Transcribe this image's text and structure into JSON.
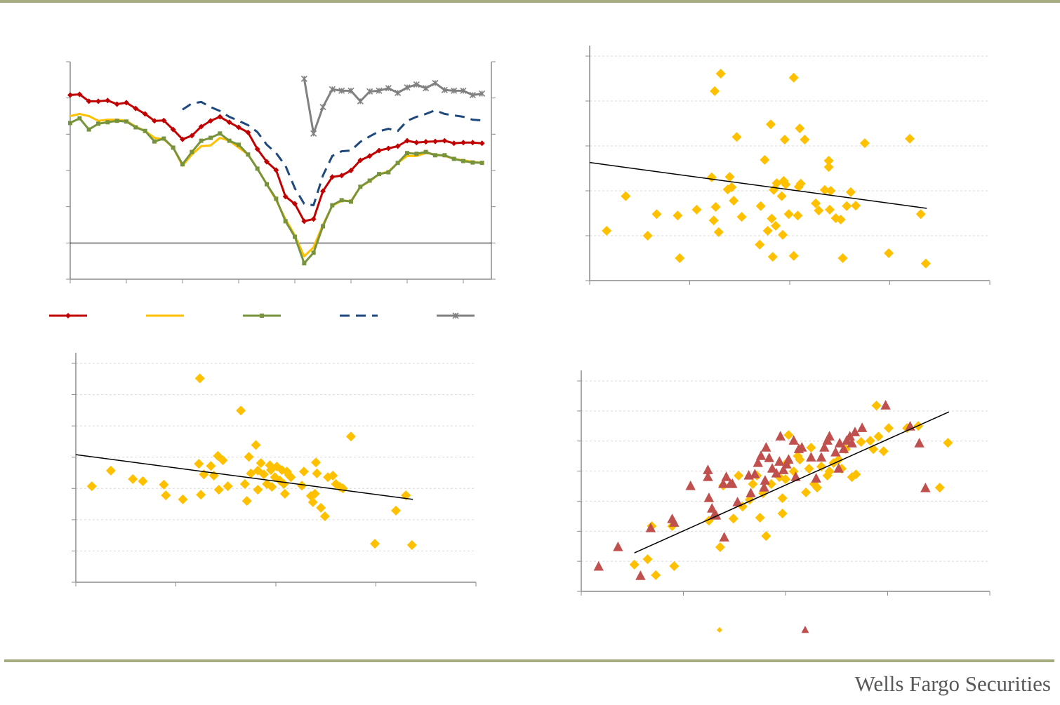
{
  "footer": "Wells Fargo Securities",
  "chart_data": [
    {
      "type": "line",
      "x": [
        0,
        1,
        2,
        3,
        4,
        5,
        6,
        7,
        8,
        9,
        10,
        11,
        12,
        13,
        14,
        15,
        16,
        17,
        18,
        19,
        20,
        21,
        22,
        23,
        24,
        25,
        26,
        27,
        28,
        29,
        30,
        31,
        32,
        33,
        34,
        35,
        36,
        37,
        38,
        39,
        40,
        41,
        42,
        43,
        44
      ],
      "xlim": [
        0,
        45
      ],
      "xticks": [
        0,
        6,
        12,
        18,
        24,
        30,
        36,
        42
      ],
      "ylim": [
        -1,
        5
      ],
      "yticks": [
        -1,
        0,
        1,
        2,
        3,
        4,
        5
      ],
      "mirror_axis": true,
      "series": [
        {
          "color": "#c00000",
          "marker": "diamond",
          "dash": false,
          "values": [
            4.08,
            4.1,
            3.91,
            3.91,
            3.93,
            3.83,
            3.87,
            3.71,
            3.56,
            3.37,
            3.38,
            3.13,
            2.86,
            2.96,
            3.21,
            3.37,
            3.48,
            3.33,
            3.19,
            3.05,
            2.59,
            2.24,
            2.01,
            1.28,
            1.08,
            0.6,
            0.66,
            1.43,
            1.82,
            1.86,
            2.0,
            2.28,
            2.4,
            2.55,
            2.61,
            2.67,
            2.82,
            2.77,
            2.79,
            2.8,
            2.82,
            2.75,
            2.77,
            2.77,
            2.75
          ]
        },
        {
          "color": "#ffc000",
          "marker": "none",
          "dash": false,
          "values": [
            3.5,
            3.56,
            3.5,
            3.37,
            3.4,
            3.4,
            3.37,
            3.21,
            3.09,
            2.9,
            2.86,
            2.63,
            2.13,
            2.44,
            2.67,
            2.69,
            2.9,
            2.82,
            2.63,
            2.44,
            2.05,
            1.62,
            1.18,
            0.66,
            0.21,
            -0.37,
            -0.12,
            0.5,
            1.03,
            1.16,
            1.16,
            1.55,
            1.7,
            1.9,
            1.97,
            2.21,
            2.4,
            2.4,
            2.48,
            2.44,
            2.4,
            2.32,
            2.28,
            2.24,
            2.21
          ]
        },
        {
          "color": "#77933c",
          "marker": "square",
          "dash": false,
          "values": [
            3.31,
            3.44,
            3.13,
            3.29,
            3.33,
            3.37,
            3.35,
            3.19,
            3.09,
            2.8,
            2.88,
            2.63,
            2.17,
            2.51,
            2.82,
            2.9,
            3.02,
            2.82,
            2.71,
            2.44,
            2.05,
            1.62,
            1.22,
            0.6,
            0.17,
            -0.56,
            -0.27,
            0.46,
            1.04,
            1.18,
            1.14,
            1.55,
            1.72,
            1.9,
            1.95,
            2.21,
            2.48,
            2.46,
            2.51,
            2.42,
            2.42,
            2.32,
            2.26,
            2.22,
            2.21
          ]
        },
        {
          "color": "#1f497d",
          "marker": "none",
          "dash": true,
          "values": [
            null,
            null,
            null,
            null,
            null,
            null,
            null,
            null,
            null,
            null,
            null,
            null,
            3.68,
            3.85,
            3.89,
            3.75,
            3.64,
            3.48,
            3.37,
            3.25,
            3.06,
            2.71,
            2.48,
            2.13,
            1.51,
            1.08,
            1.04,
            1.86,
            2.4,
            2.53,
            2.55,
            2.79,
            2.94,
            3.08,
            3.15,
            3.09,
            3.37,
            3.48,
            3.56,
            3.66,
            3.56,
            3.52,
            3.48,
            3.4,
            3.38
          ]
        },
        {
          "color": "#808080",
          "marker": "x",
          "dash": false,
          "values": [
            null,
            null,
            null,
            null,
            null,
            null,
            null,
            null,
            null,
            null,
            null,
            null,
            null,
            null,
            null,
            null,
            null,
            null,
            null,
            null,
            null,
            null,
            null,
            null,
            null,
            4.53,
            3.02,
            3.75,
            4.24,
            4.2,
            4.2,
            3.91,
            4.18,
            4.2,
            4.27,
            4.14,
            4.29,
            4.37,
            4.27,
            4.41,
            4.22,
            4.2,
            4.2,
            4.08,
            4.12
          ]
        }
      ]
    },
    {
      "type": "scatter",
      "xlim": [
        0,
        4
      ],
      "xticks": [
        0,
        1,
        2,
        3,
        4
      ],
      "ylim": [
        0,
        5
      ],
      "yticks": [
        0,
        1,
        2,
        3,
        4,
        5
      ],
      "grid": true,
      "series": [
        {
          "color": "#ffc000",
          "marker": "diamond",
          "x": [
            0.17,
            0.36,
            0.58,
            0.67,
            0.88,
            0.9,
            1.07,
            1.22,
            1.24,
            1.25,
            1.26,
            1.29,
            1.31,
            1.38,
            1.4,
            1.42,
            1.44,
            1.47,
            1.52,
            1.7,
            1.71,
            1.75,
            1.78,
            1.81,
            1.82,
            1.83,
            1.84,
            1.86,
            1.87,
            1.92,
            1.93,
            1.94,
            1.95,
            1.96,
            1.99,
            2.04,
            2.04,
            2.08,
            2.09,
            2.1,
            2.11,
            2.15,
            2.26,
            2.29,
            2.35,
            2.39,
            2.39,
            2.4,
            2.41,
            2.46,
            2.51,
            2.53,
            2.57,
            2.61,
            2.66,
            2.75,
            2.99,
            3.2,
            3.31,
            3.36
          ],
          "values": [
            1.11,
            1.88,
            1.0,
            1.48,
            1.45,
            0.5,
            1.58,
            2.3,
            1.34,
            4.22,
            1.64,
            1.08,
            4.61,
            2.03,
            2.31,
            2.08,
            1.78,
            3.2,
            1.42,
            0.8,
            1.66,
            2.69,
            1.11,
            3.48,
            1.38,
            0.53,
            2.02,
            1.22,
            2.17,
            1.88,
            1.02,
            2.22,
            3.14,
            2.14,
            1.48,
            4.52,
            0.55,
            1.45,
            2.09,
            3.39,
            2.16,
            3.14,
            1.72,
            1.56,
            2.02,
            2.53,
            2.67,
            1.58,
            2.0,
            1.39,
            1.36,
            0.5,
            1.66,
            1.97,
            1.67,
            3.06,
            0.61,
            3.16,
            1.48,
            0.38
          ]
        }
      ],
      "trendline": {
        "color": "#000000",
        "x": [
          0,
          3.37
        ],
        "values": [
          2.63,
          1.61
        ]
      }
    },
    {
      "type": "scatter",
      "xlim": [
        0,
        4
      ],
      "xticks": [
        0,
        1,
        2,
        3,
        4
      ],
      "ylim": [
        0,
        7
      ],
      "yticks": [
        0,
        1,
        2,
        3,
        4,
        5,
        6,
        7
      ],
      "grid": true,
      "series": [
        {
          "color": "#ffc000",
          "marker": "diamond",
          "x": [
            0.16,
            0.35,
            0.57,
            0.67,
            0.88,
            0.9,
            1.07,
            1.23,
            1.24,
            1.25,
            1.28,
            1.35,
            1.38,
            1.42,
            1.43,
            1.47,
            1.52,
            1.65,
            1.69,
            1.71,
            1.73,
            1.75,
            1.8,
            1.82,
            1.82,
            1.85,
            1.88,
            1.91,
            1.94,
            1.95,
            1.96,
            1.99,
            2.01,
            2.04,
            2.06,
            2.08,
            2.09,
            2.11,
            2.13,
            2.15,
            2.26,
            2.28,
            2.35,
            2.37,
            2.39,
            2.4,
            2.41,
            2.45,
            2.49,
            2.52,
            2.57,
            2.6,
            2.64,
            2.67,
            2.75,
            2.99,
            3.2,
            3.3,
            3.36
          ],
          "values": [
            3.07,
            3.57,
            3.3,
            3.23,
            3.12,
            2.78,
            2.65,
            3.79,
            6.52,
            2.8,
            3.45,
            3.72,
            3.41,
            4.04,
            2.96,
            3.9,
            3.07,
            5.49,
            3.14,
            2.6,
            4.01,
            3.48,
            4.39,
            2.96,
            3.57,
            3.81,
            3.45,
            3.14,
            3.74,
            3.59,
            3.05,
            3.36,
            3.7,
            3.25,
            3.59,
            3.14,
            2.83,
            3.54,
            3.43,
            3.36,
            3.09,
            3.54,
            2.76,
            2.56,
            2.83,
            3.83,
            3.48,
            2.38,
            2.11,
            3.36,
            3.41,
            3.14,
            3.05,
            3.0,
            4.66,
            1.23,
            2.29,
            2.78,
            1.19
          ]
        }
      ],
      "trendline": {
        "color": "#000000",
        "x": [
          0,
          3.37
        ],
        "values": [
          4.08,
          2.65
        ]
      }
    },
    {
      "type": "scatter",
      "xlim": [
        0,
        4
      ],
      "xticks": [
        0,
        1,
        2,
        3,
        4
      ],
      "ylim": [
        0,
        7
      ],
      "yticks": [
        0,
        1,
        2,
        3,
        4,
        5,
        6,
        7
      ],
      "grid": true,
      "legend": "bottom",
      "series": [
        {
          "color": "#ffc000",
          "marker": "diamond",
          "x": [
            0.52,
            0.65,
            0.69,
            0.73,
            0.89,
            0.91,
            1.25,
            1.36,
            1.39,
            1.49,
            1.54,
            1.58,
            1.65,
            1.68,
            1.72,
            1.75,
            1.78,
            1.81,
            1.86,
            1.94,
            1.97,
            1.97,
            2.0,
            2.01,
            2.03,
            2.08,
            2.12,
            2.14,
            2.2,
            2.23,
            2.25,
            2.28,
            2.31,
            2.35,
            2.41,
            2.43,
            2.47,
            2.52,
            2.55,
            2.59,
            2.65,
            2.69,
            2.74,
            2.83,
            2.86,
            2.89,
            2.91,
            2.96,
            3.01,
            3.19,
            3.3,
            3.51,
            3.59
          ],
          "values": [
            0.89,
            1.07,
            2.17,
            0.54,
            2.17,
            0.84,
            2.35,
            1.47,
            3.52,
            2.42,
            3.85,
            2.82,
            3.05,
            3.57,
            3.85,
            2.45,
            3.26,
            1.84,
            3.57,
            3.8,
            3.1,
            2.59,
            3.73,
            4.27,
            5.2,
            3.99,
            4.5,
            4.38,
            3.29,
            4.08,
            4.78,
            3.57,
            3.45,
            4.15,
            3.85,
            3.99,
            4.27,
            4.38,
            4.08,
            4.73,
            3.8,
            3.89,
            4.97,
            5.01,
            4.73,
            6.18,
            5.15,
            4.66,
            5.43,
            5.43,
            5.5,
            3.45,
            4.94
          ]
        },
        {
          "color": "#c0504d",
          "marker": "triangle",
          "x": [
            0.17,
            0.36,
            0.58,
            0.68,
            0.89,
            0.91,
            1.07,
            1.24,
            1.24,
            1.25,
            1.28,
            1.3,
            1.32,
            1.4,
            1.39,
            1.42,
            1.46,
            1.48,
            1.53,
            1.64,
            1.66,
            1.7,
            1.73,
            1.76,
            1.79,
            1.8,
            1.81,
            1.84,
            1.87,
            1.91,
            1.94,
            1.95,
            1.98,
            2.01,
            2.03,
            2.08,
            2.1,
            2.13,
            2.16,
            2.25,
            2.3,
            2.35,
            2.38,
            2.41,
            2.43,
            2.49,
            2.52,
            2.53,
            2.57,
            2.6,
            2.63,
            2.65,
            2.68,
            2.75,
            2.98,
            3.22,
            3.31,
            3.37
          ],
          "values": [
            0.82,
            1.47,
            0.51,
            2.1,
            2.4,
            2.28,
            3.5,
            4.03,
            3.8,
            3.1,
            2.75,
            2.52,
            2.52,
            1.79,
            3.57,
            3.8,
            3.57,
            3.57,
            2.96,
            3.85,
            3.26,
            3.89,
            4.27,
            4.5,
            3.45,
            3.68,
            4.78,
            4.43,
            4.08,
            3.92,
            4.31,
            5.15,
            4.03,
            4.22,
            4.38,
            5.01,
            3.8,
            4.73,
            4.78,
            4.45,
            3.75,
            4.45,
            4.78,
            5.01,
            5.15,
            4.62,
            4.08,
            4.92,
            4.73,
            5.01,
            5.15,
            4.92,
            5.29,
            5.43,
            6.18,
            5.48,
            4.92,
            3.43
          ]
        }
      ],
      "trendline": {
        "color": "#000000",
        "x": [
          0.52,
          3.6
        ],
        "values": [
          1.28,
          5.97
        ]
      }
    }
  ]
}
